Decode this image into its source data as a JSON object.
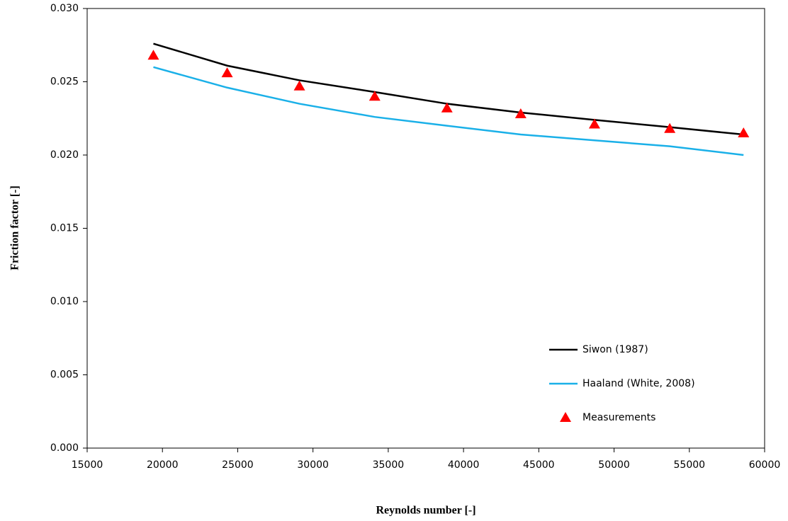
{
  "chart_data": {
    "type": "line",
    "xlabel": "Reynolds number [-]",
    "ylabel": "Friction factor [-]",
    "x": [
      19400,
      24300,
      29100,
      34100,
      38900,
      43800,
      48700,
      53700,
      58600
    ],
    "series": [
      {
        "name": "Siwon (1987)",
        "color": "#000000",
        "mode": "line",
        "values": [
          0.0276,
          0.0261,
          0.0251,
          0.0243,
          0.0235,
          0.0229,
          0.0224,
          0.0219,
          0.0214
        ]
      },
      {
        "name": "Haaland (White, 2008)",
        "color": "#1ab0e8",
        "mode": "line",
        "values": [
          0.026,
          0.0246,
          0.0235,
          0.0226,
          0.022,
          0.0214,
          0.021,
          0.0206,
          0.02
        ]
      },
      {
        "name": "Measurements",
        "color": "#ff0000",
        "mode": "marker",
        "values": [
          0.0268,
          0.0256,
          0.0247,
          0.024,
          0.0232,
          0.0228,
          0.0221,
          0.0218,
          0.0215
        ]
      }
    ],
    "xlim": [
      15000,
      60000
    ],
    "xticks": [
      15000,
      20000,
      25000,
      30000,
      35000,
      40000,
      45000,
      50000,
      55000,
      60000
    ],
    "ylim": [
      0,
      0.03
    ],
    "yticks": [
      {
        "value": 0,
        "label": "0.000"
      },
      0.005,
      {
        "value": 0.01,
        "label": "0.010"
      },
      0.015,
      {
        "value": 0.02,
        "label": "0.020"
      },
      0.025,
      {
        "value": 0.03,
        "label": "0.030"
      }
    ],
    "grid": false,
    "legend": "lower-right"
  }
}
